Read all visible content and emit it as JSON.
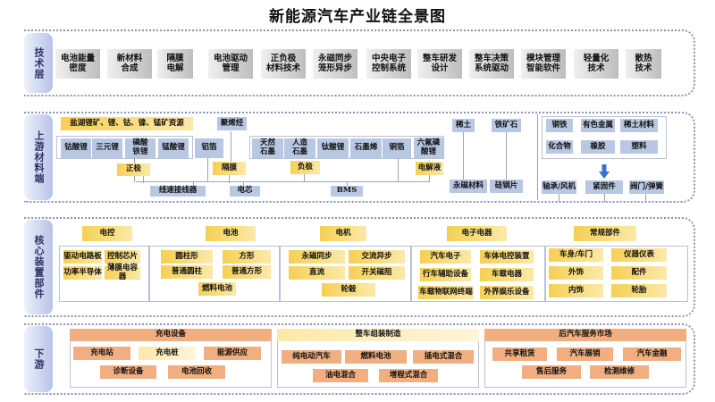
{
  "title": "新能源汽车产业链全景图",
  "tech": {
    "label": "技术层",
    "items": [
      "电池能量\n密度",
      "新材料\n合成",
      "隔膜\n电解",
      "电池驱动\n管理",
      "正负极\n材料技术",
      "永磁同步\n笼形异步",
      "中央电子\n控制系统",
      "整车研发\n设计",
      "整车决策\n系统驱动",
      "模块管理\n智能软件",
      "轻量化\n技术",
      "散热\n技术"
    ]
  },
  "upstream": {
    "label": "上游材料端",
    "resources": "盐湖锂矿、锂、钴、镍、锰矿资源",
    "polyolefin": "聚烯烃",
    "cathode_materials": [
      "钴酸锂",
      "三元锂",
      "磷酸\n铁锂",
      "锰酸锂"
    ],
    "aluminum": "铝箔",
    "cathode": "正极",
    "separator": "隔膜",
    "anode_materials": [
      "天然\n石墨",
      "人造\n石墨",
      "钛酸锂",
      "石墨烯",
      "铜箔"
    ],
    "lipf6": "六氟磷\n酸锂",
    "anode": "负极",
    "electrolyte": "电解液",
    "bottom": [
      "线速接线器",
      "电芯",
      "BMS"
    ],
    "rare_earth": "稀土",
    "iron_ore": "铁矿石",
    "magnet": "永磁材料",
    "silicon_steel": "硅钢片",
    "raw": [
      "钢铁",
      "有色金属",
      "稀土材料",
      "化合物",
      "橡胶",
      "塑料"
    ],
    "parts": [
      "轴承/风机",
      "紧固件",
      "阀门/弹簧"
    ]
  },
  "core": {
    "label": "核心装置部件",
    "groups": [
      {
        "title": "电控",
        "items": [
          "驱动电路板",
          "控制芯片",
          "功率半导体",
          "薄膜电容器"
        ]
      },
      {
        "title": "电池",
        "items": [
          "圆柱形",
          "方形",
          "普通圆柱",
          "普通方形",
          "燃料电池"
        ]
      },
      {
        "title": "电机",
        "items": [
          "永磁同步",
          "交流异步",
          "直流",
          "开关磁阻",
          "轮毂"
        ]
      },
      {
        "title": "电子电器",
        "items": [
          "汽车电子",
          "车体电控装置",
          "行车辅助设备",
          "车载电器",
          "车载物联网终端",
          "外界娱乐设备"
        ]
      },
      {
        "title": "常规部件",
        "items": [
          "车身/车门",
          "仪器仪表",
          "外饰",
          "配件",
          "内饰",
          "轮胎"
        ]
      }
    ]
  },
  "downstream": {
    "label": "下游",
    "groups": [
      {
        "title": "充电设备",
        "items": [
          "充电站",
          "充电桩",
          "能源供应",
          "诊断设备",
          "电池回收"
        ]
      },
      {
        "title": "整车组装制造",
        "items": [
          "纯电动汽车",
          "燃料电池",
          "插电式混合",
          "油电混合",
          "增程式混合"
        ]
      },
      {
        "title": "后汽车服务市场",
        "items": [
          "共享租赁",
          "汽车展销",
          "汽车金融",
          "售后服务",
          "检测维修"
        ]
      }
    ]
  },
  "colors": {
    "yellow": "#f6cf55",
    "blue": "#b8c7e2",
    "orange": "#f1ae80",
    "grey": "#c8c8c8",
    "tab": "#b7c2e8"
  }
}
